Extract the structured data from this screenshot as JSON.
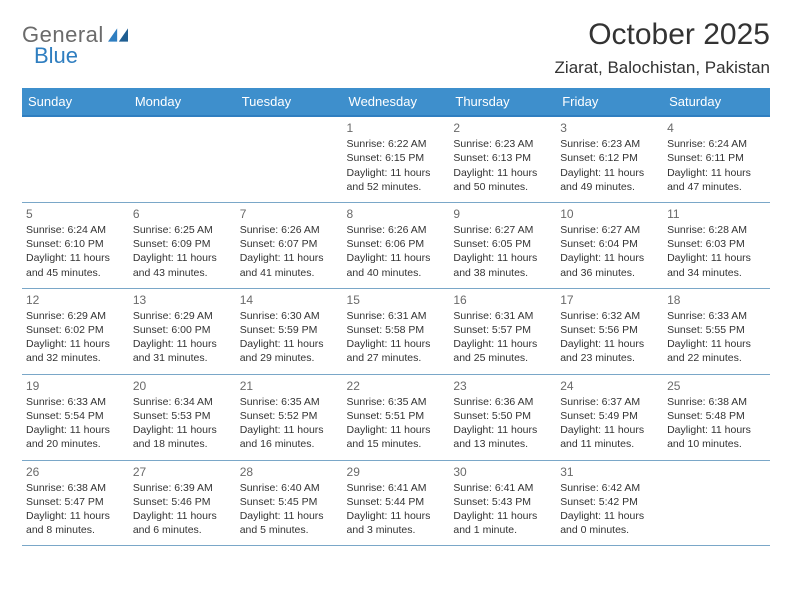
{
  "colors": {
    "header_bg": "#3e8fcc",
    "top_line": "#2f7ec0",
    "row_line": "#7aa7c8",
    "logo_gray": "#6b6b6b",
    "logo_blue": "#2f7ec0"
  },
  "logo": {
    "part1": "General",
    "part2": "Blue"
  },
  "title": "October 2025",
  "subtitle": "Ziarat, Balochistan, Pakistan",
  "weekdays": [
    "Sunday",
    "Monday",
    "Tuesday",
    "Wednesday",
    "Thursday",
    "Friday",
    "Saturday"
  ],
  "weeks": [
    [
      null,
      null,
      null,
      {
        "n": "1",
        "sr": "6:22 AM",
        "ss": "6:15 PM",
        "dl": "11 hours and 52 minutes."
      },
      {
        "n": "2",
        "sr": "6:23 AM",
        "ss": "6:13 PM",
        "dl": "11 hours and 50 minutes."
      },
      {
        "n": "3",
        "sr": "6:23 AM",
        "ss": "6:12 PM",
        "dl": "11 hours and 49 minutes."
      },
      {
        "n": "4",
        "sr": "6:24 AM",
        "ss": "6:11 PM",
        "dl": "11 hours and 47 minutes."
      }
    ],
    [
      {
        "n": "5",
        "sr": "6:24 AM",
        "ss": "6:10 PM",
        "dl": "11 hours and 45 minutes."
      },
      {
        "n": "6",
        "sr": "6:25 AM",
        "ss": "6:09 PM",
        "dl": "11 hours and 43 minutes."
      },
      {
        "n": "7",
        "sr": "6:26 AM",
        "ss": "6:07 PM",
        "dl": "11 hours and 41 minutes."
      },
      {
        "n": "8",
        "sr": "6:26 AM",
        "ss": "6:06 PM",
        "dl": "11 hours and 40 minutes."
      },
      {
        "n": "9",
        "sr": "6:27 AM",
        "ss": "6:05 PM",
        "dl": "11 hours and 38 minutes."
      },
      {
        "n": "10",
        "sr": "6:27 AM",
        "ss": "6:04 PM",
        "dl": "11 hours and 36 minutes."
      },
      {
        "n": "11",
        "sr": "6:28 AM",
        "ss": "6:03 PM",
        "dl": "11 hours and 34 minutes."
      }
    ],
    [
      {
        "n": "12",
        "sr": "6:29 AM",
        "ss": "6:02 PM",
        "dl": "11 hours and 32 minutes."
      },
      {
        "n": "13",
        "sr": "6:29 AM",
        "ss": "6:00 PM",
        "dl": "11 hours and 31 minutes."
      },
      {
        "n": "14",
        "sr": "6:30 AM",
        "ss": "5:59 PM",
        "dl": "11 hours and 29 minutes."
      },
      {
        "n": "15",
        "sr": "6:31 AM",
        "ss": "5:58 PM",
        "dl": "11 hours and 27 minutes."
      },
      {
        "n": "16",
        "sr": "6:31 AM",
        "ss": "5:57 PM",
        "dl": "11 hours and 25 minutes."
      },
      {
        "n": "17",
        "sr": "6:32 AM",
        "ss": "5:56 PM",
        "dl": "11 hours and 23 minutes."
      },
      {
        "n": "18",
        "sr": "6:33 AM",
        "ss": "5:55 PM",
        "dl": "11 hours and 22 minutes."
      }
    ],
    [
      {
        "n": "19",
        "sr": "6:33 AM",
        "ss": "5:54 PM",
        "dl": "11 hours and 20 minutes."
      },
      {
        "n": "20",
        "sr": "6:34 AM",
        "ss": "5:53 PM",
        "dl": "11 hours and 18 minutes."
      },
      {
        "n": "21",
        "sr": "6:35 AM",
        "ss": "5:52 PM",
        "dl": "11 hours and 16 minutes."
      },
      {
        "n": "22",
        "sr": "6:35 AM",
        "ss": "5:51 PM",
        "dl": "11 hours and 15 minutes."
      },
      {
        "n": "23",
        "sr": "6:36 AM",
        "ss": "5:50 PM",
        "dl": "11 hours and 13 minutes."
      },
      {
        "n": "24",
        "sr": "6:37 AM",
        "ss": "5:49 PM",
        "dl": "11 hours and 11 minutes."
      },
      {
        "n": "25",
        "sr": "6:38 AM",
        "ss": "5:48 PM",
        "dl": "11 hours and 10 minutes."
      }
    ],
    [
      {
        "n": "26",
        "sr": "6:38 AM",
        "ss": "5:47 PM",
        "dl": "11 hours and 8 minutes."
      },
      {
        "n": "27",
        "sr": "6:39 AM",
        "ss": "5:46 PM",
        "dl": "11 hours and 6 minutes."
      },
      {
        "n": "28",
        "sr": "6:40 AM",
        "ss": "5:45 PM",
        "dl": "11 hours and 5 minutes."
      },
      {
        "n": "29",
        "sr": "6:41 AM",
        "ss": "5:44 PM",
        "dl": "11 hours and 3 minutes."
      },
      {
        "n": "30",
        "sr": "6:41 AM",
        "ss": "5:43 PM",
        "dl": "11 hours and 1 minute."
      },
      {
        "n": "31",
        "sr": "6:42 AM",
        "ss": "5:42 PM",
        "dl": "11 hours and 0 minutes."
      },
      null
    ]
  ],
  "labels": {
    "sunrise": "Sunrise: ",
    "sunset": "Sunset: ",
    "daylight": "Daylight: "
  }
}
